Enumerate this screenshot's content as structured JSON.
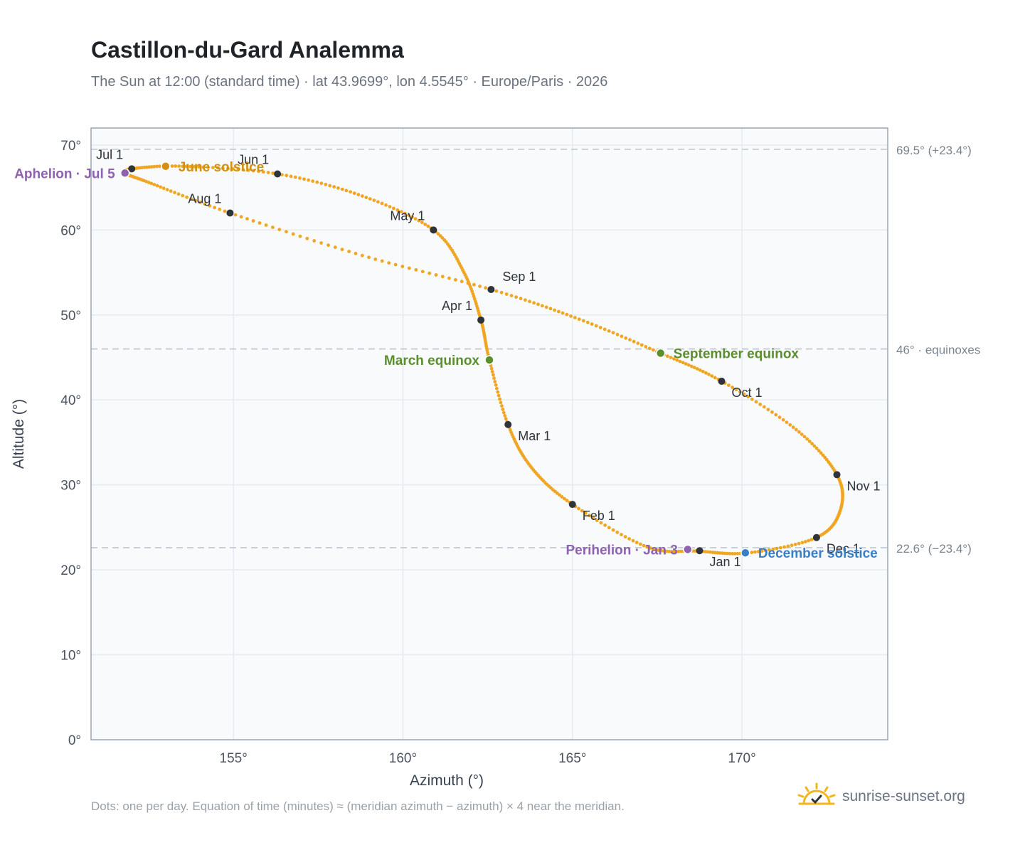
{
  "title": "Castillon-du-Gard Analemma",
  "subtitle": "The Sun at 12:00 (standard time) · lat 43.9699°, lon 4.5545° · Europe/Paris · 2026",
  "footnote": "Dots: one per day. Equation of time (minutes) ≈ (meridian azimuth − azimuth) × 4 near the meridian.",
  "brand": {
    "name": "sunrise-sunset.org",
    "icon": "sun-check-icon"
  },
  "colors": {
    "path": "#f0a623",
    "month_dot": "#2f343b",
    "solstice_june": "#d4900f",
    "solstice_december": "#3a7fc4",
    "equinox": "#5b8f2e",
    "apsis": "#8e62b0",
    "grid": "#e6ebf0",
    "plot_bg": "#f8fafc",
    "ref_line": "#c6ccd6"
  },
  "chart_data": {
    "type": "scatter",
    "xlabel": "Azimuth (°)",
    "ylabel": "Altitude (°)",
    "xlim": [
      150.8,
      174.3
    ],
    "ylim": [
      0,
      72
    ],
    "grid": true,
    "x_ticks": [
      155,
      160,
      165,
      170
    ],
    "x_tick_labels": [
      "155°",
      "160°",
      "165°",
      "170°"
    ],
    "y_ticks": [
      0,
      10,
      20,
      30,
      40,
      50,
      60,
      70
    ],
    "y_tick_labels": [
      "0°",
      "10°",
      "20°",
      "30°",
      "40°",
      "50°",
      "60°",
      "70°"
    ],
    "path_anchors": [
      {
        "az": 168.7,
        "alt": 22.2
      },
      {
        "az": 167.2,
        "alt": 22.7
      },
      {
        "az": 165.0,
        "alt": 27.7
      },
      {
        "az": 163.8,
        "alt": 32.0
      },
      {
        "az": 163.1,
        "alt": 37.1
      },
      {
        "az": 162.55,
        "alt": 44.7
      },
      {
        "az": 162.3,
        "alt": 49.4
      },
      {
        "az": 161.8,
        "alt": 55.0
      },
      {
        "az": 160.9,
        "alt": 60.0
      },
      {
        "az": 158.8,
        "alt": 64.0
      },
      {
        "az": 156.3,
        "alt": 66.6
      },
      {
        "az": 153.5,
        "alt": 67.5
      },
      {
        "az": 152.0,
        "alt": 67.2
      },
      {
        "az": 151.8,
        "alt": 66.7
      },
      {
        "az": 152.5,
        "alt": 65.6
      },
      {
        "az": 154.9,
        "alt": 62.0
      },
      {
        "az": 158.8,
        "alt": 57.0
      },
      {
        "az": 162.6,
        "alt": 53.0
      },
      {
        "az": 165.2,
        "alt": 49.5
      },
      {
        "az": 167.6,
        "alt": 45.5
      },
      {
        "az": 169.4,
        "alt": 42.2
      },
      {
        "az": 171.6,
        "alt": 36.5
      },
      {
        "az": 172.8,
        "alt": 31.2
      },
      {
        "az": 172.9,
        "alt": 27.0
      },
      {
        "az": 172.2,
        "alt": 23.8
      },
      {
        "az": 170.2,
        "alt": 22.0
      },
      {
        "az": 168.7,
        "alt": 22.2
      }
    ],
    "month_markers": [
      {
        "label": "Jan 1",
        "az": 168.75,
        "alt": 22.25,
        "label_pos": "below-right"
      },
      {
        "label": "Feb 1",
        "az": 165.0,
        "alt": 27.7,
        "label_pos": "below-right"
      },
      {
        "label": "Mar 1",
        "az": 163.1,
        "alt": 37.1,
        "label_pos": "below-right"
      },
      {
        "label": "Apr 1",
        "az": 162.3,
        "alt": 49.4,
        "label_pos": "above-left"
      },
      {
        "label": "May 1",
        "az": 160.9,
        "alt": 60.0,
        "label_pos": "above-left"
      },
      {
        "label": "Jun 1",
        "az": 156.3,
        "alt": 66.6,
        "label_pos": "above-left"
      },
      {
        "label": "Jul 1",
        "az": 152.0,
        "alt": 67.2,
        "label_pos": "above-left"
      },
      {
        "label": "Aug 1",
        "az": 154.9,
        "alt": 62.0,
        "label_pos": "above-left"
      },
      {
        "label": "Sep 1",
        "az": 162.6,
        "alt": 53.0,
        "label_pos": "above-right"
      },
      {
        "label": "Oct 1",
        "az": 169.4,
        "alt": 42.2,
        "label_pos": "below-right"
      },
      {
        "label": "Nov 1",
        "az": 172.8,
        "alt": 31.2,
        "label_pos": "below-right"
      },
      {
        "label": "Dec 1",
        "az": 172.2,
        "alt": 23.8,
        "label_pos": "below-right"
      }
    ],
    "events": [
      {
        "label": "June solstice",
        "az": 153.0,
        "alt": 67.5,
        "color_key": "solstice_june",
        "label_pos": "right"
      },
      {
        "label": "December solstice",
        "az": 170.1,
        "alt": 22.0,
        "color_key": "solstice_december",
        "label_pos": "right"
      },
      {
        "label": "March equinox",
        "az": 162.55,
        "alt": 44.7,
        "color_key": "equinox",
        "label_pos": "left"
      },
      {
        "label": "September equinox",
        "az": 167.6,
        "alt": 45.5,
        "color_key": "equinox",
        "label_pos": "right"
      },
      {
        "label": "Aphelion · Jul 5",
        "az": 151.8,
        "alt": 66.7,
        "color_key": "apsis",
        "label_pos": "left"
      },
      {
        "label": "Perihelion · Jan 3",
        "az": 168.4,
        "alt": 22.4,
        "color_key": "apsis",
        "label_pos": "left"
      }
    ],
    "reference_lines": [
      {
        "alt": 69.5,
        "label": "69.5° (+23.4°)"
      },
      {
        "alt": 46.0,
        "label": "46° · equinoxes"
      },
      {
        "alt": 22.6,
        "label": "22.6° (−23.4°)"
      }
    ]
  }
}
